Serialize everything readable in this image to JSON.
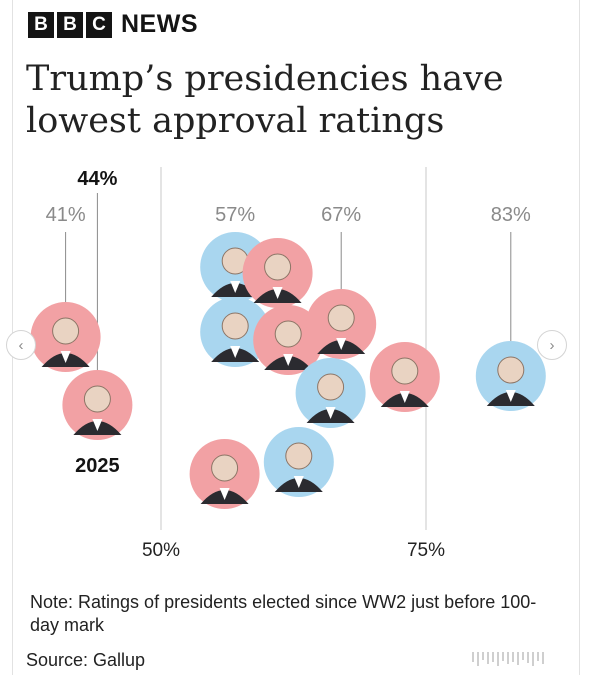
{
  "header": {
    "brand_letters": [
      "B",
      "B",
      "C"
    ],
    "brand_word": "NEWS"
  },
  "title": "Trump’s presidencies have lowest approval ratings",
  "colors": {
    "republican": "#f2a1a4",
    "democrat": "#a9d6ef",
    "axis": "#c8c8c8",
    "muted_text": "#8a8a8a",
    "emphasis_text": "#141414"
  },
  "chart_data": {
    "type": "scatter",
    "title": "Trump’s presidencies have lowest approval ratings",
    "xlabel": "",
    "ylabel": "",
    "xlim": [
      35,
      90
    ],
    "x_axis_ticks": [
      {
        "value": 50,
        "label": "50%"
      },
      {
        "value": 75,
        "label": "75%"
      }
    ],
    "callouts": [
      {
        "value": 41,
        "label": "41%",
        "bold": false
      },
      {
        "value": 44,
        "label": "44%",
        "bold": true,
        "note": "2025"
      },
      {
        "value": 57,
        "label": "57%",
        "bold": false
      },
      {
        "value": 67,
        "label": "67%",
        "bold": false
      },
      {
        "value": 83,
        "label": "83%",
        "bold": false
      }
    ],
    "points": [
      {
        "party": "republican",
        "approval": 41,
        "icon": "portrait-icon"
      },
      {
        "party": "republican",
        "approval": 44,
        "icon": "portrait-icon",
        "note": "2025"
      },
      {
        "party": "democrat",
        "approval": 57,
        "icon": "portrait-icon"
      },
      {
        "party": "democrat",
        "approval": 57,
        "icon": "portrait-icon"
      },
      {
        "party": "republican",
        "approval": 56,
        "icon": "portrait-icon"
      },
      {
        "party": "republican",
        "approval": 62,
        "icon": "portrait-icon"
      },
      {
        "party": "republican",
        "approval": 61,
        "icon": "portrait-icon"
      },
      {
        "party": "democrat",
        "approval": 63,
        "icon": "portrait-icon"
      },
      {
        "party": "republican",
        "approval": 67,
        "icon": "portrait-icon"
      },
      {
        "party": "democrat",
        "approval": 66,
        "icon": "portrait-icon"
      },
      {
        "party": "republican",
        "approval": 73,
        "icon": "portrait-icon"
      },
      {
        "party": "democrat",
        "approval": 83,
        "icon": "portrait-icon"
      }
    ]
  },
  "note": "Note: Ratings of presidents elected since WW2 just before 100-day mark",
  "source": "Source: Gallup",
  "nav": {
    "prev_icon": "‹",
    "next_icon": "›"
  }
}
